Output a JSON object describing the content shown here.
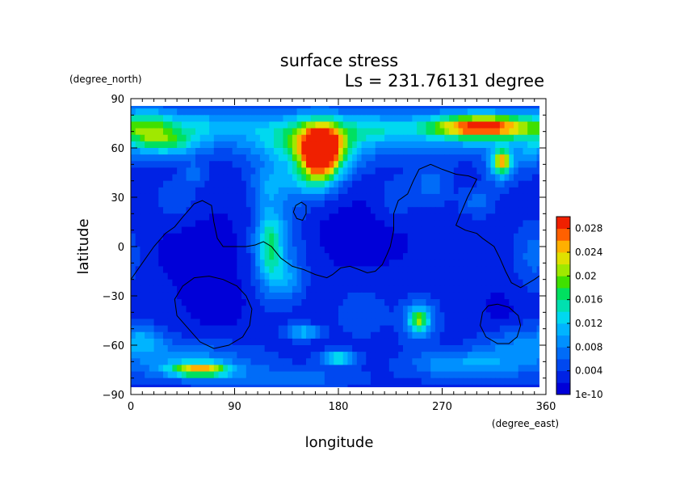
{
  "chart_data": {
    "type": "heatmap",
    "title": "surface stress",
    "subtitle": "Ls = 231.76131 degree",
    "xlabel": "longitude",
    "ylabel": "latitude",
    "x_unit": "(degree_east)",
    "y_unit": "(degree_north)",
    "xlim": [
      0,
      360
    ],
    "ylim": [
      -90,
      90
    ],
    "x_ticks": [
      "0",
      "90",
      "180",
      "270",
      "360"
    ],
    "y_ticks": [
      "90",
      "60",
      "30",
      "0",
      "−30",
      "−60",
      "−90"
    ],
    "x_tick_values": [
      0,
      90,
      180,
      270,
      360
    ],
    "y_tick_values": [
      90,
      60,
      30,
      0,
      -30,
      -60,
      -90
    ],
    "colorbar": {
      "tick_labels": [
        "1e-10",
        "0.004",
        "0.008",
        "0.012",
        "0.016",
        "0.02",
        "0.024",
        "0.028"
      ],
      "tick_values": [
        0,
        0.004,
        0.008,
        0.012,
        0.016,
        0.02,
        0.024,
        0.028
      ],
      "min": 0,
      "max": 0.03,
      "levels": 15,
      "colors": [
        "#0000d8",
        "#0022e4",
        "#0048f0",
        "#006cf8",
        "#0090ff",
        "#00b4ff",
        "#00d8f0",
        "#00e0b0",
        "#00e060",
        "#40e000",
        "#a0e800",
        "#e0e000",
        "#ffb000",
        "#ff6000",
        "#f02000"
      ]
    },
    "background_value": 0.003,
    "features": [
      {
        "lon": 165,
        "lat": 57,
        "slon": 12,
        "slat": 11,
        "value": 0.027
      },
      {
        "lon": 160,
        "lat": 62,
        "slon": 30,
        "slat": 12,
        "value": 0.011
      },
      {
        "lon": 140,
        "lat": 68,
        "slon": 55,
        "slat": 9,
        "value": 0.006
      },
      {
        "lon": 155,
        "lat": 40,
        "slon": 18,
        "slat": 9,
        "value": 0.006
      },
      {
        "lon": 30,
        "lat": 64,
        "slon": 22,
        "slat": 6,
        "value": 0.012
      },
      {
        "lon": 55,
        "lat": 75,
        "slon": 40,
        "slat": 6,
        "value": 0.006
      },
      {
        "lon": 15,
        "lat": 75,
        "slon": 14,
        "slat": 8,
        "value": 0.006
      },
      {
        "lon": 305,
        "lat": 73,
        "slon": 32,
        "slat": 5,
        "value": 0.02
      },
      {
        "lon": 300,
        "lat": 70,
        "slon": 55,
        "slat": 9,
        "value": 0.008
      },
      {
        "lon": 215,
        "lat": 72,
        "slon": 22,
        "slat": 6,
        "value": 0.005
      },
      {
        "lon": 322,
        "lat": 52,
        "slon": 5,
        "slat": 5,
        "value": 0.016
      },
      {
        "lon": 320,
        "lat": 48,
        "slon": 9,
        "slat": 8,
        "value": 0.007
      },
      {
        "lon": 345,
        "lat": 55,
        "slon": 10,
        "slat": 8,
        "value": 0.004
      },
      {
        "lon": 120,
        "lat": 0,
        "slon": 8,
        "slat": 16,
        "value": 0.01
      },
      {
        "lon": 128,
        "lat": 5,
        "slon": 16,
        "slat": 24,
        "value": 0.005
      },
      {
        "lon": 135,
        "lat": -20,
        "slon": 10,
        "slat": 8,
        "value": 0.005
      },
      {
        "lon": 118,
        "lat": 38,
        "slon": 10,
        "slat": 8,
        "value": 0.004
      },
      {
        "lon": 250,
        "lat": -45,
        "slon": 6,
        "slat": 5,
        "value": 0.013
      },
      {
        "lon": 250,
        "lat": -45,
        "slon": 12,
        "slat": 10,
        "value": 0.005
      },
      {
        "lon": 150,
        "lat": -52,
        "slon": 10,
        "slat": 3,
        "value": 0.009
      },
      {
        "lon": 180,
        "lat": -68,
        "slon": 10,
        "slat": 3,
        "value": 0.012
      },
      {
        "lon": 60,
        "lat": -75,
        "slon": 18,
        "slat": 3,
        "value": 0.018
      },
      {
        "lon": 50,
        "lat": -70,
        "slon": 40,
        "slat": 8,
        "value": 0.006
      },
      {
        "lon": 10,
        "lat": -57,
        "slon": 14,
        "slat": 6,
        "value": 0.007
      },
      {
        "lon": 140,
        "lat": -80,
        "slon": 40,
        "slat": 5,
        "value": 0.004
      },
      {
        "lon": 285,
        "lat": -72,
        "slon": 30,
        "slat": 6,
        "value": 0.007
      },
      {
        "lon": 330,
        "lat": -62,
        "slon": 20,
        "slat": 10,
        "value": 0.005
      },
      {
        "lon": 300,
        "lat": 27,
        "slon": 10,
        "slat": 6,
        "value": 0.004
      },
      {
        "lon": 40,
        "lat": 28,
        "slon": 14,
        "slat": 10,
        "value": 0.003
      },
      {
        "lon": 55,
        "lat": 45,
        "slon": 7,
        "slat": 5,
        "value": 0.004
      },
      {
        "lon": 230,
        "lat": 28,
        "slon": 12,
        "slat": 10,
        "value": 0.003
      },
      {
        "lon": 260,
        "lat": 38,
        "slon": 12,
        "slat": 10,
        "value": 0.004
      },
      {
        "lon": 350,
        "lat": -5,
        "slon": 12,
        "slat": 14,
        "value": 0.004
      },
      {
        "lon": 200,
        "lat": -40,
        "slon": 14,
        "slat": 10,
        "value": 0.003
      },
      {
        "lon": 75,
        "lat": -35,
        "slon": 20,
        "slat": 12,
        "value": -0.002
      },
      {
        "lon": 320,
        "lat": -40,
        "slon": 12,
        "slat": 10,
        "value": -0.002
      },
      {
        "lon": 200,
        "lat": 10,
        "slon": 40,
        "slat": 20,
        "value": -0.002
      },
      {
        "lon": 60,
        "lat": 0,
        "slon": 35,
        "slat": 20,
        "value": -0.002
      }
    ],
    "outlines": [
      [
        [
          0,
          -20
        ],
        [
          10,
          -10
        ],
        [
          20,
          0
        ],
        [
          30,
          8
        ],
        [
          38,
          12
        ],
        [
          45,
          18
        ],
        [
          55,
          26
        ],
        [
          62,
          28
        ],
        [
          70,
          25
        ],
        [
          72,
          15
        ],
        [
          75,
          5
        ],
        [
          80,
          0
        ],
        [
          90,
          0
        ],
        [
          100,
          0
        ],
        [
          108,
          1
        ],
        [
          115,
          3
        ],
        [
          122,
          0
        ],
        [
          130,
          -7
        ],
        [
          140,
          -12
        ],
        [
          150,
          -14
        ],
        [
          160,
          -17
        ],
        [
          170,
          -19
        ],
        [
          175,
          -17
        ],
        [
          182,
          -13
        ],
        [
          190,
          -12
        ],
        [
          198,
          -14
        ],
        [
          205,
          -16
        ],
        [
          212,
          -15
        ],
        [
          218,
          -11
        ],
        [
          222,
          -5
        ],
        [
          225,
          0
        ],
        [
          228,
          10
        ],
        [
          228,
          20
        ],
        [
          232,
          28
        ],
        [
          240,
          32
        ],
        [
          245,
          40
        ],
        [
          250,
          47
        ],
        [
          260,
          50
        ],
        [
          270,
          47
        ],
        [
          282,
          44
        ],
        [
          293,
          43
        ],
        [
          300,
          41
        ],
        [
          292,
          30
        ],
        [
          286,
          20
        ],
        [
          282,
          13
        ],
        [
          290,
          10
        ],
        [
          300,
          8
        ],
        [
          305,
          5
        ],
        [
          315,
          0
        ],
        [
          320,
          -7
        ],
        [
          325,
          -15
        ],
        [
          330,
          -22
        ],
        [
          338,
          -25
        ],
        [
          350,
          -20
        ],
        [
          360,
          -15
        ]
      ],
      [
        [
          68,
          -18
        ],
        [
          80,
          -20
        ],
        [
          92,
          -24
        ],
        [
          100,
          -30
        ],
        [
          105,
          -38
        ],
        [
          103,
          -48
        ],
        [
          97,
          -55
        ],
        [
          85,
          -60
        ],
        [
          72,
          -62
        ],
        [
          60,
          -58
        ],
        [
          50,
          -50
        ],
        [
          40,
          -42
        ],
        [
          38,
          -32
        ],
        [
          45,
          -24
        ],
        [
          55,
          -19
        ],
        [
          68,
          -18
        ]
      ],
      [
        [
          318,
          -35
        ],
        [
          328,
          -37
        ],
        [
          336,
          -42
        ],
        [
          338,
          -48
        ],
        [
          335,
          -55
        ],
        [
          328,
          -59
        ],
        [
          318,
          -59
        ],
        [
          308,
          -55
        ],
        [
          303,
          -48
        ],
        [
          305,
          -40
        ],
        [
          310,
          -36
        ],
        [
          318,
          -35
        ]
      ],
      [
        [
          143,
          25
        ],
        [
          148,
          27
        ],
        [
          152,
          25
        ],
        [
          152,
          20
        ],
        [
          149,
          16
        ],
        [
          144,
          17
        ],
        [
          141,
          21
        ],
        [
          143,
          25
        ]
      ]
    ]
  }
}
